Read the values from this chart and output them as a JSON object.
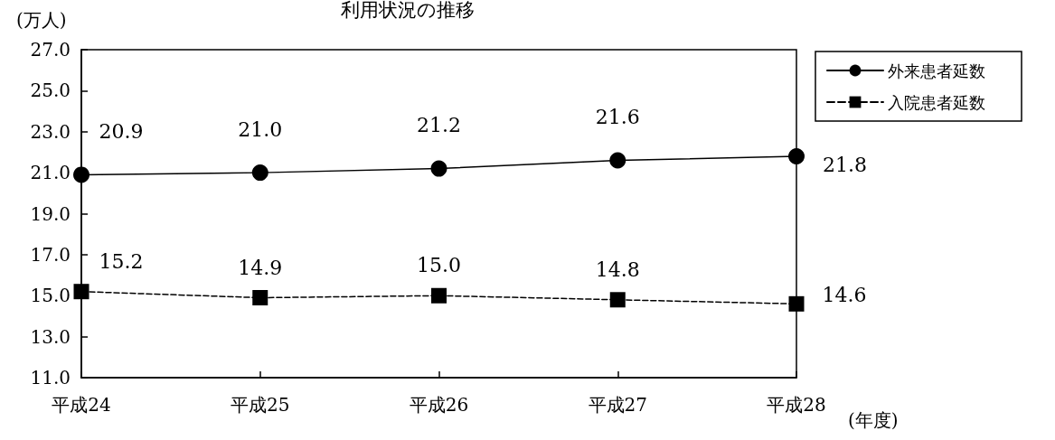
{
  "chart_data": {
    "type": "line",
    "title": "利用状況の推移",
    "ylabel": "(万人)",
    "xlabel": "(年度)",
    "categories": [
      "平成24",
      "平成25",
      "平成26",
      "平成27",
      "平成28"
    ],
    "series": [
      {
        "name": "外来患者延数",
        "color": "#000000",
        "values": [
          20.9,
          21.0,
          21.2,
          21.6,
          21.8
        ],
        "value_labels": [
          "20.9",
          "21.0",
          "21.2",
          "21.6",
          "21.8"
        ],
        "marker": "circle",
        "line_style": "solid"
      },
      {
        "name": "入院患者延数",
        "color": "#000000",
        "values": [
          15.2,
          14.9,
          15.0,
          14.8,
          14.6
        ],
        "value_labels": [
          "15.2",
          "14.9",
          "15.0",
          "14.8",
          "14.6"
        ],
        "marker": "square",
        "line_style": "dashed"
      }
    ],
    "ylim": [
      11,
      27
    ],
    "yticks": [
      {
        "value": 11,
        "label": "11.0"
      },
      {
        "value": 13,
        "label": "13.0"
      },
      {
        "value": 15,
        "label": "15.0"
      },
      {
        "value": 17,
        "label": "17.0"
      },
      {
        "value": 19,
        "label": "19.0"
      },
      {
        "value": 21,
        "label": "21.0"
      },
      {
        "value": 23,
        "label": "23.0"
      },
      {
        "value": 25,
        "label": "25.0"
      },
      {
        "value": 27,
        "label": "27.0"
      }
    ],
    "grid": false,
    "legend": "top right"
  }
}
